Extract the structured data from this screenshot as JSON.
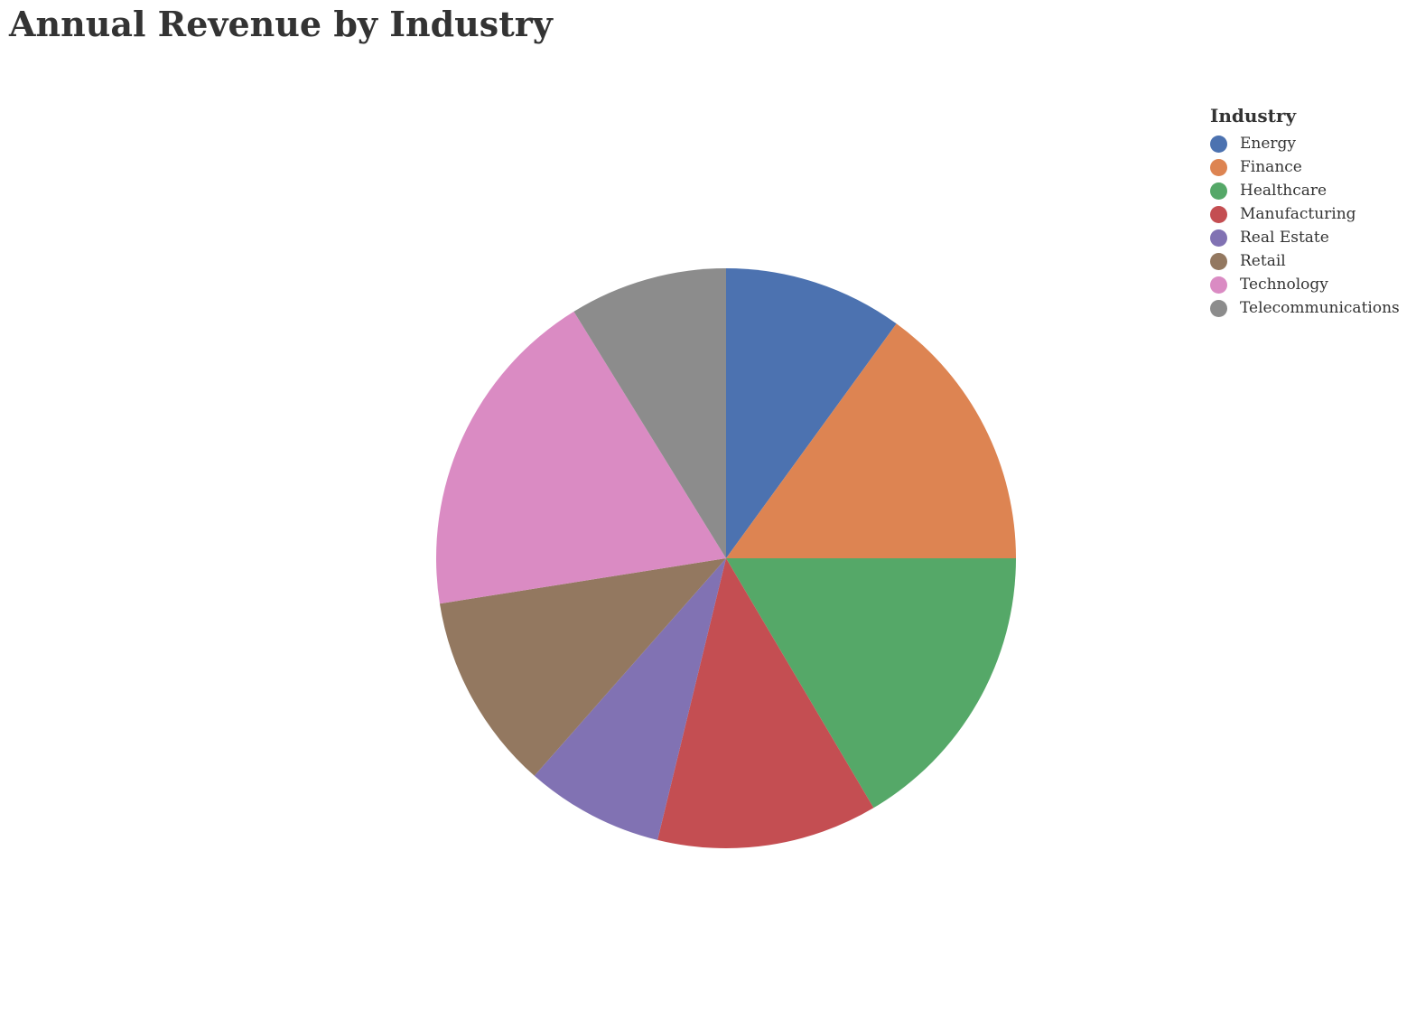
{
  "chart_data": {
    "type": "pie",
    "title": "Annual Revenue by Industry",
    "legend_title": "Industry",
    "legend_position": "top-right",
    "slices": [
      {
        "label": "Energy",
        "value": 10.0,
        "color": "#4c72b0"
      },
      {
        "label": "Finance",
        "value": 15.0,
        "color": "#dd8452"
      },
      {
        "label": "Healthcare",
        "value": 16.5,
        "color": "#55a868"
      },
      {
        "label": "Manufacturing",
        "value": 12.3,
        "color": "#c44e52"
      },
      {
        "label": "Real Estate",
        "value": 7.7,
        "color": "#8172b3"
      },
      {
        "label": "Retail",
        "value": 11.0,
        "color": "#937860"
      },
      {
        "label": "Technology",
        "value": 18.7,
        "color": "#da8bc3"
      },
      {
        "label": "Telecommunications",
        "value": 8.8,
        "color": "#8c8c8c"
      }
    ]
  }
}
